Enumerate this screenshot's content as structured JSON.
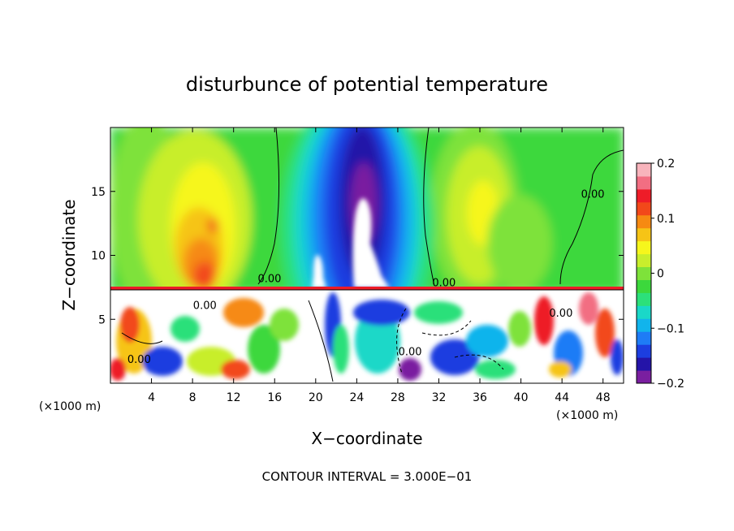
{
  "chart_data": {
    "type": "heatmap",
    "title": "disturbunce of potential temperature",
    "xlabel": "X−coordinate",
    "ylabel": "Z−coordinate",
    "x_unit_left": "(×1000 m)",
    "x_unit_right": "(×1000 m)",
    "footer": "CONTOUR INTERVAL = 3.000E−01",
    "xlim": [
      0,
      50
    ],
    "ylim": [
      0,
      20
    ],
    "x_ticks": [
      {
        "v": 4,
        "label": "4"
      },
      {
        "v": 8,
        "label": "8"
      },
      {
        "v": 12,
        "label": "12"
      },
      {
        "v": 16,
        "label": "16"
      },
      {
        "v": 20,
        "label": "20"
      },
      {
        "v": 24,
        "label": "24"
      },
      {
        "v": 28,
        "label": "28"
      },
      {
        "v": 32,
        "label": "32"
      },
      {
        "v": 36,
        "label": "36"
      },
      {
        "v": 40,
        "label": "40"
      },
      {
        "v": 44,
        "label": "44"
      },
      {
        "v": 48,
        "label": "48"
      }
    ],
    "y_ticks": [
      {
        "v": 5,
        "label": "5"
      },
      {
        "v": 10,
        "label": "10"
      },
      {
        "v": 15,
        "label": "15"
      }
    ],
    "colorbar": {
      "range": [
        -0.2,
        0.2
      ],
      "ticks": [
        {
          "v": 0.2,
          "label": "0.2"
        },
        {
          "v": 0.1,
          "label": "0.1"
        },
        {
          "v": 0,
          "label": "0"
        },
        {
          "v": -0.1,
          "label": "−0.1"
        },
        {
          "v": -0.2,
          "label": "−0.2"
        }
      ],
      "colors": [
        "#7a1fa0",
        "#2414a8",
        "#1c3ee0",
        "#1e7cf6",
        "#11b4ec",
        "#1ad8c8",
        "#2ce07a",
        "#3cd83c",
        "#7ee23a",
        "#c8ee2c",
        "#f6f61c",
        "#f6c416",
        "#f68a12",
        "#f2481a",
        "#ee1c28",
        "#f26e82",
        "#f8b4bc"
      ]
    },
    "contour_labels": [
      {
        "x": 15.5,
        "y": 7.9,
        "label": "0.00"
      },
      {
        "x": 32.5,
        "y": 7.6,
        "label": "0.00"
      },
      {
        "x": 47.0,
        "y": 14.5,
        "label": "0.00"
      },
      {
        "x": 9.2,
        "y": 5.8,
        "label": "0.00"
      },
      {
        "x": 2.8,
        "y": 1.6,
        "label": "0.00"
      },
      {
        "x": 29.2,
        "y": 2.2,
        "label": "0.00"
      },
      {
        "x": 43.9,
        "y": 5.2,
        "label": "0.00"
      }
    ]
  }
}
